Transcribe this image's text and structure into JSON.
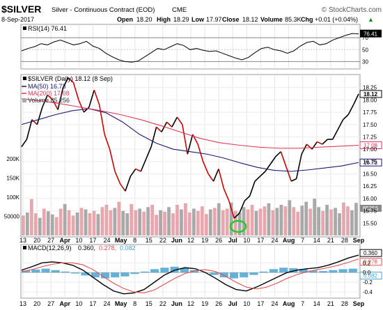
{
  "header": {
    "symbol": "$SILVER",
    "name": "Silver - Continuous Contract (EOD)",
    "exchange": "CME",
    "brand": "© StockCharts.com",
    "date": "8-Sep-2017",
    "open_label": "Open",
    "open": "18.20",
    "high_label": "High",
    "high": "18.29",
    "low_label": "Low",
    "low": "17.97",
    "close_label": "Close",
    "close": "18.12",
    "volume_label": "Volume",
    "volume": "85.3K",
    "chg_label": "Chg",
    "chg": "+0.01 (+0.04%)",
    "chg_arrow": "▲"
  },
  "legends": {
    "rsi": "RSI(14) 76.41",
    "price": "$SILVER (Daily) 18.12 (8 Sep)",
    "ma50": "MA(50) 16.73",
    "ma200": "MA(200) 17.08",
    "volume": "Volume 85,256",
    "macd_prefix": "MACD(12,26,9)",
    "macd_val": "0.360,",
    "macd_sig": "0.278,",
    "macd_hist": "0.082"
  },
  "colors": {
    "price": "#000000",
    "price_down": "#cc0000",
    "ma50": "#1a1a6e",
    "ma200": "#e03a5a",
    "vol_up": "#a9a9a9",
    "vol_down": "#e8a6ad",
    "macd_hist": "#4aa3d0",
    "macd_signal": "#e05050",
    "rsi_fill": "#9b6b6b",
    "highlight": "#22cc22"
  },
  "chart_data": [
    {
      "panel": "rsi",
      "type": "line",
      "title": "RSI(14)",
      "ylim": [
        20,
        90
      ],
      "yticks": [
        30,
        50,
        70
      ],
      "last_value_label": "76.41",
      "values": [
        48,
        52,
        55,
        60,
        58,
        63,
        66,
        62,
        58,
        60,
        64,
        56,
        52,
        44,
        38,
        33,
        30,
        29,
        31,
        38,
        45,
        52,
        50,
        55,
        60,
        57,
        50,
        52,
        49,
        47,
        48,
        44,
        40,
        36,
        33,
        37,
        45,
        52,
        54,
        50,
        48,
        44,
        48,
        56,
        62,
        64,
        58,
        60,
        66,
        70,
        74,
        77,
        76.41
      ]
    },
    {
      "panel": "price",
      "type": "line",
      "title": "$SILVER (Daily)",
      "ylim": [
        15.25,
        18.5
      ],
      "yticks": [
        15.5,
        15.75,
        16.0,
        16.25,
        16.5,
        16.75,
        17.0,
        17.25,
        17.5,
        17.75,
        18.0,
        18.25
      ],
      "tag_labels": [
        "18.12",
        "17.08",
        "16.73"
      ],
      "series": [
        {
          "name": "$SILVER (Daily)",
          "values": [
            17.05,
            17.2,
            17.6,
            17.5,
            17.85,
            18.1,
            18.0,
            17.8,
            18.25,
            18.45,
            18.35,
            18.0,
            17.75,
            17.85,
            18.2,
            17.9,
            17.3,
            17.0,
            16.55,
            16.3,
            16.15,
            16.45,
            16.6,
            16.55,
            16.8,
            17.05,
            17.45,
            17.35,
            17.55,
            17.45,
            17.65,
            17.5,
            16.9,
            17.3,
            17.1,
            16.75,
            16.5,
            16.35,
            16.6,
            16.2,
            15.95,
            15.6,
            15.7,
            15.95,
            16.05,
            16.35,
            16.45,
            16.55,
            16.7,
            16.85,
            16.95,
            16.65,
            16.35,
            16.4,
            16.9,
            17.1,
            17.0,
            17.15,
            17.1,
            17.2,
            17.2,
            17.4,
            17.6,
            17.7,
            17.9,
            18.12
          ]
        },
        {
          "name": "MA(50)",
          "values": [
            17.5,
            17.6,
            17.7,
            17.78,
            17.82,
            17.74,
            17.55,
            17.3,
            17.12,
            17.0,
            16.95,
            16.9,
            16.82,
            16.72,
            16.63,
            16.57,
            16.55,
            16.58,
            16.62,
            16.66,
            16.73
          ]
        },
        {
          "name": "MA(200)",
          "values": [
            18.02,
            17.98,
            17.92,
            17.85,
            17.78,
            17.7,
            17.6,
            17.48,
            17.35,
            17.22,
            17.13,
            17.08,
            17.04,
            17.02,
            17.02,
            17.04,
            17.06,
            17.08
          ]
        }
      ]
    },
    {
      "panel": "volume",
      "type": "bar",
      "title": "Volume",
      "yticks": [
        50000,
        100000,
        150000,
        200000
      ],
      "ytick_labels": [
        "50000",
        "100K",
        "150K",
        "200K"
      ],
      "last_value_label": "85256",
      "values": [
        52,
        60,
        95,
        58,
        46,
        70,
        63,
        55,
        48,
        70,
        82,
        66,
        52,
        60,
        72,
        68,
        58,
        64,
        56,
        74,
        80,
        66,
        72,
        88,
        64,
        58,
        82,
        66,
        70,
        62,
        74,
        80,
        54,
        66,
        62,
        74,
        58,
        80,
        68,
        84,
        60,
        70,
        64,
        76,
        56,
        68,
        72,
        84,
        66,
        70,
        86,
        64,
        60,
        74,
        68,
        80,
        64,
        70,
        76,
        84,
        66,
        72,
        80,
        76,
        92,
        74,
        62,
        78,
        88,
        70,
        96,
        74,
        64,
        80,
        68,
        72,
        58,
        86,
        76,
        66,
        85
      ],
      "down_flags": [
        1,
        0,
        1,
        1,
        0,
        1,
        0,
        0,
        1,
        1,
        0,
        1,
        1,
        0,
        1,
        0,
        1,
        1,
        0,
        1,
        1,
        1,
        0,
        1,
        0,
        0,
        1,
        1,
        0,
        1,
        0,
        1,
        1,
        0,
        1,
        0,
        1,
        1,
        0,
        1,
        1,
        0,
        1,
        1,
        1,
        0,
        1,
        0,
        1,
        1,
        0,
        1,
        0,
        0,
        1,
        1,
        0,
        1,
        1,
        0,
        1,
        0,
        0,
        1,
        0,
        1,
        1,
        0,
        0,
        1,
        0,
        0,
        1,
        0,
        1,
        0,
        0,
        1,
        1,
        0,
        0
      ]
    },
    {
      "panel": "macd",
      "type": "line",
      "title": "MACD(12,26,9)",
      "ylim": [
        -0.5,
        0.42
      ],
      "yticks": [
        -0.4,
        -0.2,
        0.0,
        0.2
      ],
      "tag_labels": [
        "0.360",
        "0.278",
        "0.082"
      ],
      "series": [
        {
          "name": "MACD",
          "values": [
            0.05,
            0.12,
            0.2,
            0.22,
            0.2,
            0.15,
            0.05,
            -0.1,
            -0.25,
            -0.38,
            -0.44,
            -0.42,
            -0.35,
            -0.2,
            -0.05,
            0.05,
            0.1,
            0.08,
            0.0,
            -0.12,
            -0.25,
            -0.35,
            -0.38,
            -0.3,
            -0.2,
            -0.1,
            0.0,
            0.05,
            0.08,
            0.1,
            0.15,
            0.22,
            0.3,
            0.36
          ]
        },
        {
          "name": "Signal",
          "values": [
            0.02,
            0.06,
            0.12,
            0.17,
            0.2,
            0.2,
            0.16,
            0.06,
            -0.08,
            -0.22,
            -0.33,
            -0.4,
            -0.42,
            -0.36,
            -0.24,
            -0.12,
            -0.02,
            0.04,
            0.06,
            0.02,
            -0.08,
            -0.2,
            -0.3,
            -0.34,
            -0.3,
            -0.22,
            -0.12,
            -0.04,
            0.02,
            0.06,
            0.1,
            0.15,
            0.21,
            0.28
          ]
        }
      ],
      "histogram": [
        0.04,
        0.06,
        0.08,
        0.05,
        0.02,
        -0.02,
        -0.06,
        -0.1,
        -0.12,
        -0.1,
        -0.08,
        -0.03,
        0.02,
        0.07,
        0.1,
        0.12,
        0.09,
        0.05,
        0.0,
        -0.05,
        -0.1,
        -0.12,
        -0.1,
        -0.05,
        0.02,
        0.07,
        0.1,
        0.09,
        0.07,
        0.04,
        0.03,
        0.05,
        0.07,
        0.08
      ]
    }
  ],
  "x_axis": {
    "ticks": [
      "13",
      "20",
      "27",
      "Apr",
      "10",
      "17",
      "24",
      "May",
      "8",
      "15",
      "22",
      "Jun",
      "12",
      "19",
      "26",
      "Jul",
      "10",
      "17",
      "24",
      "Aug",
      "7",
      "14",
      "21",
      "28",
      "Sep"
    ],
    "bold": [
      "Apr",
      "May",
      "Jun",
      "Jul",
      "Aug",
      "Sep"
    ]
  }
}
